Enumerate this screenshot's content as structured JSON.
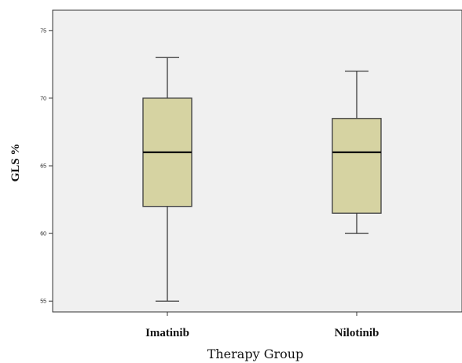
{
  "chart_data": {
    "type": "box",
    "xlabel": "Therapy Group",
    "ylabel": "GLS %",
    "ylim": [
      54.2,
      76.5
    ],
    "yticks": [
      55,
      60,
      65,
      70,
      75
    ],
    "ytick_labels": [
      "55",
      "60",
      "65",
      "70",
      "75"
    ],
    "categories": [
      "Imatinib",
      "Nilotinib"
    ],
    "boxes": [
      {
        "category": "Imatinib",
        "min": 55,
        "q1": 62,
        "median": 66,
        "q3": 70,
        "max": 73
      },
      {
        "category": "Nilotinib",
        "min": 60,
        "q1": 61.5,
        "median": 66,
        "q3": 68.5,
        "max": 72
      }
    ],
    "grid": false,
    "colors": {
      "plot_background": "#f0f0f0",
      "box_fill": "#d6d3a2",
      "box_stroke": "#3c3c3c",
      "median": "#111111",
      "axis": "#333333"
    }
  }
}
